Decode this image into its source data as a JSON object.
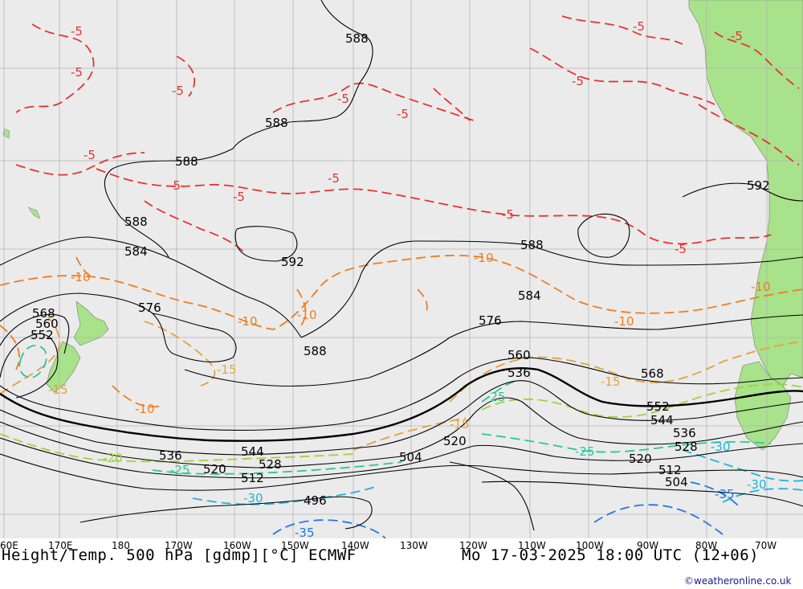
{
  "title_left": "Height/Temp. 500 hPa [gdmp][°C] ECMWF",
  "title_right": "Mo 17-03-2025 18:00 UTC (12+06)",
  "credit": "©weatheronline.co.uk",
  "colors": {
    "background": "#ebebeb",
    "land": "#a8e28a",
    "grid": "#b4b4b4",
    "height": "#000000",
    "temp_minus5": "#e83232",
    "temp_minus10": "#f07d1e",
    "temp_minus15": "#e6a03c",
    "temp_minus20": "#a0d23c",
    "temp_minus25": "#28c896",
    "temp_minus30": "#1eb4dc",
    "temp_minus35": "#1e78e6"
  },
  "lon_labels": [
    "60E",
    "170E",
    "180",
    "170W",
    "160W",
    "150W",
    "140W",
    "130W",
    "120W",
    "110W",
    "100W",
    "90W",
    "80W",
    "70W"
  ],
  "height_labels": [
    "588",
    "588",
    "588",
    "592",
    "588",
    "584",
    "592",
    "576",
    "568",
    "560",
    "552",
    "588",
    "588",
    "584",
    "576",
    "560",
    "536",
    "568",
    "552",
    "544",
    "536",
    "528",
    "520",
    "536",
    "544",
    "528",
    "520",
    "512",
    "496",
    "504",
    "520",
    "512",
    "504"
  ],
  "temp_labels": [
    "-5",
    "-5",
    "-5",
    "-5",
    "-5",
    "-5",
    "-5",
    "-5",
    "-5",
    "-5",
    "-5",
    "-5",
    "-5",
    "-5",
    "-10",
    "-10",
    "-10",
    "-10",
    "-10",
    "-10",
    "-10",
    "-15",
    "-15",
    "-15",
    "-15",
    "-20",
    "-25",
    "-25",
    "-25",
    "-30",
    "-30",
    "-30",
    "-35",
    "-35"
  ]
}
